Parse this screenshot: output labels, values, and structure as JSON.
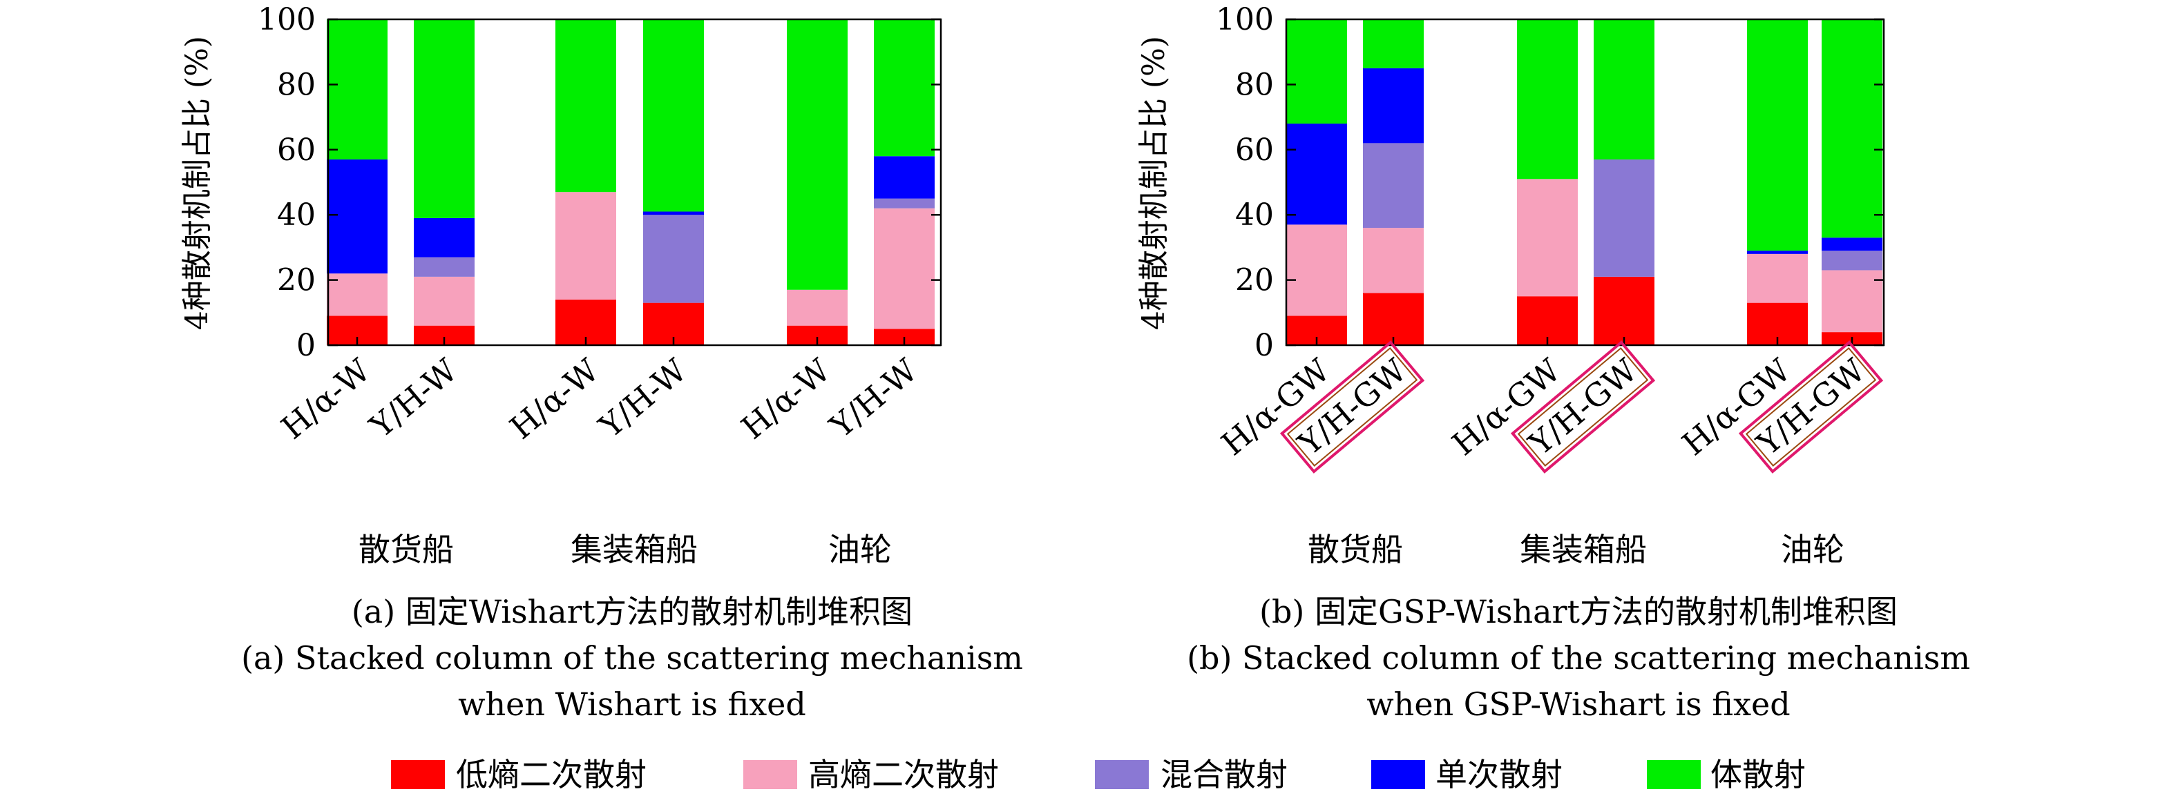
{
  "chart_data": [
    {
      "type": "bar",
      "stacked": true,
      "ylabel": "4种散射机制占比 (%)",
      "ylim": [
        0,
        100
      ],
      "yticks": [
        0,
        20,
        40,
        60,
        80,
        100
      ],
      "grid": false,
      "categories": [
        "H/α-W",
        "Y/H-W",
        "H/α-W",
        "Y/H-W",
        "H/α-W",
        "Y/H-W"
      ],
      "boxed": [
        false,
        false,
        false,
        false,
        false,
        false
      ],
      "groups": [
        "散货船",
        "集装箱船",
        "油轮"
      ],
      "series": [
        {
          "name": "低熵二次散射",
          "values": [
            9,
            6,
            14,
            13,
            6,
            5
          ]
        },
        {
          "name": "高熵二次散射",
          "values": [
            13,
            15,
            33,
            0,
            11,
            37
          ]
        },
        {
          "name": "混合散射",
          "values": [
            0,
            6,
            0,
            27,
            0,
            3
          ]
        },
        {
          "name": "单次散射",
          "values": [
            35,
            12,
            0,
            1,
            0,
            13
          ]
        },
        {
          "name": "体散射",
          "values": [
            43,
            61,
            53,
            59,
            83,
            42
          ]
        }
      ],
      "caption_cn": "(a) 固定Wishart方法的散射机制堆积图",
      "caption_en_1": "(a) Stacked column of the scattering mechanism",
      "caption_en_2": "when Wishart is fixed"
    },
    {
      "type": "bar",
      "stacked": true,
      "ylabel": "4种散射机制占比 (%)",
      "ylim": [
        0,
        100
      ],
      "yticks": [
        0,
        20,
        40,
        60,
        80,
        100
      ],
      "grid": false,
      "categories": [
        "H/α-GW",
        "Y/H-GW",
        "H/α-GW",
        "Y/H-GW",
        "H/α-GW",
        "Y/H-GW"
      ],
      "boxed": [
        false,
        true,
        false,
        true,
        false,
        true
      ],
      "groups": [
        "散货船",
        "集装箱船",
        "油轮"
      ],
      "series": [
        {
          "name": "低熵二次散射",
          "values": [
            9,
            16,
            15,
            21,
            13,
            4
          ]
        },
        {
          "name": "高熵二次散射",
          "values": [
            28,
            20,
            36,
            0,
            15,
            19
          ]
        },
        {
          "name": "混合散射",
          "values": [
            0,
            26,
            0,
            36,
            0,
            6
          ]
        },
        {
          "name": "单次散射",
          "values": [
            31,
            23,
            0,
            0,
            1,
            4
          ]
        },
        {
          "name": "体散射",
          "values": [
            32,
            15,
            49,
            43,
            71,
            67
          ]
        }
      ],
      "caption_cn": "(b) 固定GSP-Wishart方法的散射机制堆积图",
      "caption_en_1": "(b) Stacked column of the scattering mechanism",
      "caption_en_2": "when GSP-Wishart is fixed"
    }
  ],
  "legend": {
    "position": "bottom",
    "items": [
      {
        "label": "低熵二次散射",
        "color": "#ff0000"
      },
      {
        "label": "高熵二次散射",
        "color": "#f7a1bc"
      },
      {
        "label": "混合散射",
        "color": "#8a78d4"
      },
      {
        "label": "单次散射",
        "color": "#0000ff"
      },
      {
        "label": "体散射",
        "color": "#00ee00"
      }
    ]
  },
  "colors": {
    "box_border": "#e0186c",
    "box_inner_border": "#9a4a10"
  }
}
